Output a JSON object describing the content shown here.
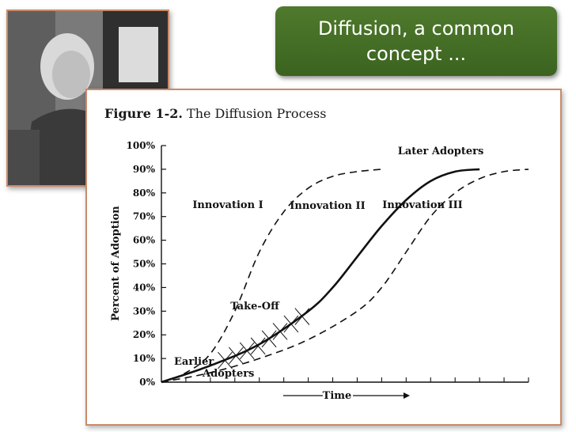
{
  "slide": {
    "title": "Diffusion, a common concept ..."
  },
  "photo": {
    "icon": "person-photo"
  },
  "figure": {
    "label": "Figure 1-2.",
    "caption": "The Diffusion Process"
  },
  "chart_data": {
    "type": "line",
    "title": "The Diffusion Process",
    "xlabel": "Time",
    "ylabel": "Percent of Adoption",
    "ylim": [
      0,
      100
    ],
    "y_ticks": [
      "0%",
      "10%",
      "20%",
      "30%",
      "40%",
      "50%",
      "60%",
      "70%",
      "80%",
      "90%",
      "100%"
    ],
    "x_range": [
      0,
      15
    ],
    "series": [
      {
        "name": "Innovation I",
        "style": "dashed",
        "x": [
          0,
          1,
          2,
          3,
          4,
          5,
          6,
          7,
          8,
          9
        ],
        "y": [
          0,
          4,
          12,
          30,
          55,
          72,
          82,
          87,
          89,
          90
        ]
      },
      {
        "name": "Innovation II",
        "style": "solid",
        "x": [
          0,
          2,
          4,
          6,
          7,
          8,
          9,
          10,
          11,
          12,
          13
        ],
        "y": [
          0,
          7,
          16,
          30,
          40,
          53,
          66,
          77,
          85,
          89,
          90
        ]
      },
      {
        "name": "Innovation III",
        "style": "dashed",
        "x": [
          0,
          2,
          4,
          6,
          8,
          9,
          10,
          11,
          12,
          13,
          14,
          15
        ],
        "y": [
          0,
          4,
          10,
          18,
          30,
          40,
          55,
          70,
          80,
          86,
          89,
          90
        ]
      }
    ],
    "annotations": [
      "Later Adopters",
      "Take-Off",
      "Earlier",
      "Adopters"
    ],
    "grid": false
  }
}
